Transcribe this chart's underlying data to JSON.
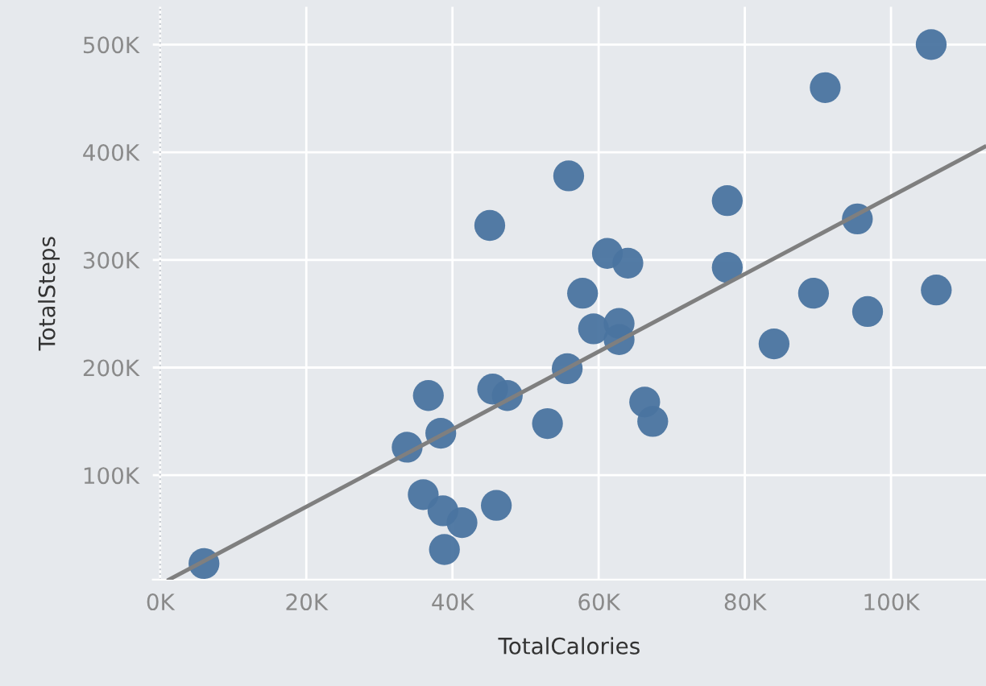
{
  "chart_data": {
    "type": "scatter",
    "xlabel": "TotalCalories",
    "ylabel": "TotalSteps",
    "xlim": [
      -1000,
      113000
    ],
    "ylim": [
      3000,
      535000
    ],
    "xticks": [
      {
        "value": 0,
        "label": "0K"
      },
      {
        "value": 20000,
        "label": "20K"
      },
      {
        "value": 40000,
        "label": "40K"
      },
      {
        "value": 60000,
        "label": "60K"
      },
      {
        "value": 80000,
        "label": "80K"
      },
      {
        "value": 100000,
        "label": "100K"
      }
    ],
    "yticks": [
      {
        "value": 100000,
        "label": "100K"
      },
      {
        "value": 200000,
        "label": "200K"
      },
      {
        "value": 300000,
        "label": "300K"
      },
      {
        "value": 400000,
        "label": "400K"
      },
      {
        "value": 500000,
        "label": "500K"
      }
    ],
    "grid": true,
    "marker": "circle",
    "ref_lines": [
      {
        "axis": "x",
        "value": 0,
        "label": null,
        "color": "#c8ccd2",
        "line_style": "dotted"
      }
    ],
    "series": [
      {
        "color": "#4a74a0",
        "x": [
          6000,
          36700,
          38400,
          33800,
          36000,
          38700,
          41300,
          38900,
          46000,
          45100,
          45500,
          47500,
          53000,
          55700,
          55900,
          57800,
          59300,
          61200,
          64000,
          62800,
          62800,
          66300,
          67400,
          77600,
          77600,
          84000,
          89400,
          91000,
          95400,
          96800,
          105500,
          106200
        ],
        "values": [
          18000,
          174000,
          139000,
          126000,
          82000,
          67000,
          56000,
          31000,
          72000,
          332000,
          180000,
          174000,
          148000,
          199000,
          378000,
          269000,
          236000,
          306000,
          297000,
          241000,
          226000,
          168000,
          150000,
          355000,
          293000,
          222000,
          269000,
          460000,
          338000,
          252000,
          500000,
          272000
        ]
      },
      {
        "type": "line",
        "color": "#7f7f7f",
        "marker": "none",
        "x": [
          1200,
          112800
        ],
        "values": [
          3000,
          405000
        ]
      }
    ]
  }
}
